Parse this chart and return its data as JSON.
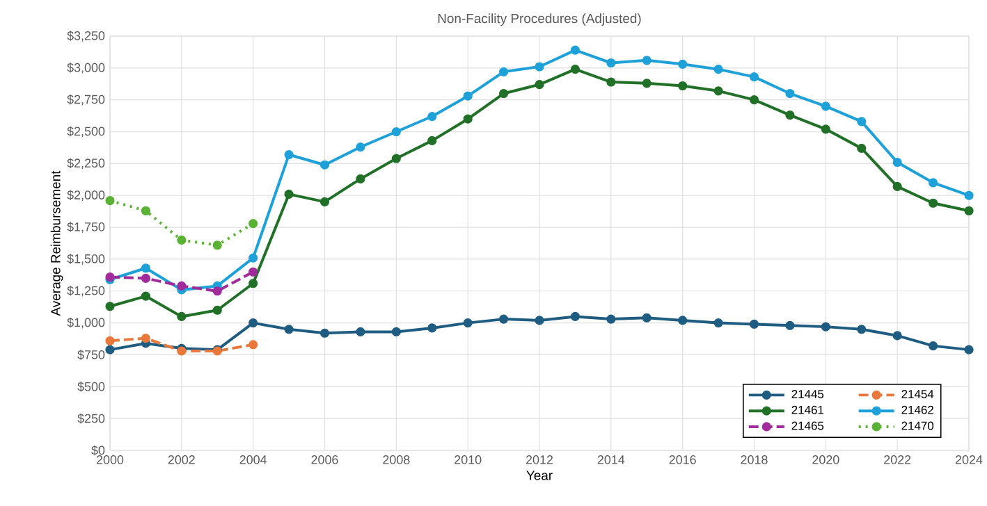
{
  "chart_data": {
    "type": "line",
    "title": "Non-Facility Procedures (Adjusted)",
    "xlabel": "Year",
    "ylabel": "Average Reimbursement",
    "x": [
      2000,
      2001,
      2002,
      2003,
      2004,
      2005,
      2006,
      2007,
      2008,
      2009,
      2010,
      2011,
      2012,
      2013,
      2014,
      2015,
      2016,
      2017,
      2018,
      2019,
      2020,
      2021,
      2022,
      2023,
      2024
    ],
    "series": [
      {
        "name": "21445",
        "color": "#1f5c82",
        "line_style": "solid",
        "values": [
          790,
          840,
          800,
          790,
          1000,
          950,
          920,
          930,
          930,
          960,
          1000,
          1030,
          1020,
          1050,
          1030,
          1040,
          1020,
          1000,
          990,
          980,
          970,
          950,
          900,
          820,
          790
        ]
      },
      {
        "name": "21454",
        "color": "#e8793a",
        "line_style": "dashed",
        "x": [
          2000,
          2001,
          2002,
          2003,
          2004
        ],
        "values": [
          860,
          880,
          780,
          780,
          830
        ]
      },
      {
        "name": "21461",
        "color": "#217027",
        "line_style": "solid",
        "values": [
          1130,
          1210,
          1050,
          1100,
          1310,
          2010,
          1950,
          2130,
          2290,
          2430,
          2600,
          2800,
          2870,
          2990,
          2890,
          2880,
          2860,
          2820,
          2750,
          2630,
          2520,
          2370,
          2070,
          1940,
          1880
        ]
      },
      {
        "name": "21462",
        "color": "#1ea0d8",
        "line_style": "solid",
        "values": [
          1340,
          1430,
          1260,
          1290,
          1510,
          2320,
          2240,
          2380,
          2500,
          2620,
          2780,
          2970,
          3010,
          3140,
          3040,
          3060,
          3030,
          2990,
          2930,
          2800,
          2700,
          2580,
          2260,
          2100,
          2000
        ]
      },
      {
        "name": "21465",
        "color": "#a22b9b",
        "line_style": "dashed",
        "x": [
          2000,
          2001,
          2002,
          2003,
          2004
        ],
        "values": [
          1360,
          1350,
          1290,
          1250,
          1400
        ]
      },
      {
        "name": "21470",
        "color": "#5ab234",
        "line_style": "dotted",
        "x": [
          2000,
          2001,
          2002,
          2003,
          2004
        ],
        "values": [
          1960,
          1880,
          1650,
          1610,
          1780
        ]
      }
    ],
    "xlim": [
      2000,
      2024
    ],
    "xticks": [
      2000,
      2002,
      2004,
      2006,
      2008,
      2010,
      2012,
      2014,
      2016,
      2018,
      2020,
      2022,
      2024
    ],
    "ylim": [
      0,
      3250
    ],
    "yticks": [
      {
        "value": 0,
        "label": "$0"
      },
      {
        "value": 250,
        "label": "$250"
      },
      {
        "value": 500,
        "label": "$500"
      },
      {
        "value": 750,
        "label": "$750"
      },
      {
        "value": 1000,
        "label": "$1,000"
      },
      {
        "value": 1250,
        "label": "$1,250"
      },
      {
        "value": 1500,
        "label": "$1,500"
      },
      {
        "value": 1750,
        "label": "$1,750"
      },
      {
        "value": 2000,
        "label": "$2,000"
      },
      {
        "value": 2250,
        "label": "$2,250"
      },
      {
        "value": 2500,
        "label": "$2,500"
      },
      {
        "value": 2750,
        "label": "$2,750"
      },
      {
        "value": 3000,
        "label": "$3,000"
      },
      {
        "value": 3250,
        "label": "$3,250"
      }
    ],
    "grid": true,
    "legend": "bottom right",
    "marker": "circle"
  }
}
